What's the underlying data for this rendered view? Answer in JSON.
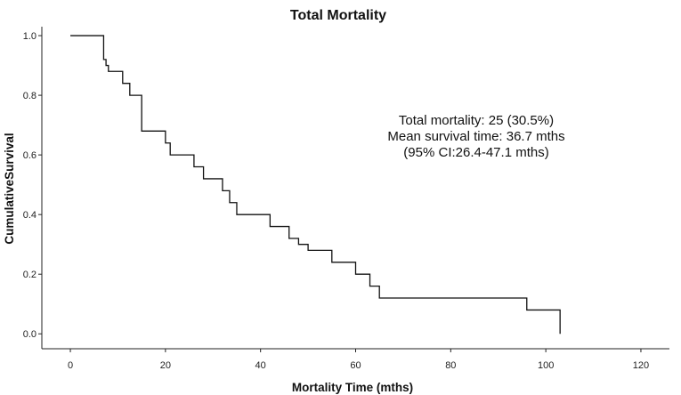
{
  "chart_data": {
    "type": "line",
    "step": true,
    "title": "Total Mortality",
    "xlabel": "Mortality Time (mths)",
    "ylabel": "CumulativeSurvival",
    "xlim": [
      -6,
      126
    ],
    "ylim": [
      -0.05,
      1.03
    ],
    "xticks": [
      0,
      20,
      40,
      60,
      80,
      100,
      120
    ],
    "xtick_labels": [
      "0",
      "20",
      "40",
      "60",
      "80",
      "100",
      "120"
    ],
    "yticks": [
      0.0,
      0.2,
      0.4,
      0.6,
      0.8,
      1.0
    ],
    "ytick_labels": [
      "0.0",
      "0.2",
      "0.4",
      "0.6",
      "0.8",
      "1.0"
    ],
    "series": [
      {
        "name": "Total Mortality",
        "x": [
          0,
          7,
          7.5,
          8,
          11,
          12.5,
          15,
          20,
          21,
          26,
          28,
          32,
          33.5,
          35,
          42,
          46,
          48,
          50,
          55,
          60,
          63,
          65,
          96,
          103
        ],
        "y": [
          1.0,
          0.92,
          0.9,
          0.88,
          0.84,
          0.8,
          0.68,
          0.64,
          0.6,
          0.56,
          0.52,
          0.48,
          0.44,
          0.4,
          0.36,
          0.32,
          0.3,
          0.28,
          0.24,
          0.2,
          0.16,
          0.12,
          0.08,
          0.04
        ],
        "end": [
          103,
          0.0
        ],
        "color": "#111111"
      }
    ],
    "annotations": [
      "Total mortality: 25 (30.5%)",
      "Mean survival time: 36.7 mths",
      "(95% CI:26.4-47.1 mths)"
    ]
  }
}
